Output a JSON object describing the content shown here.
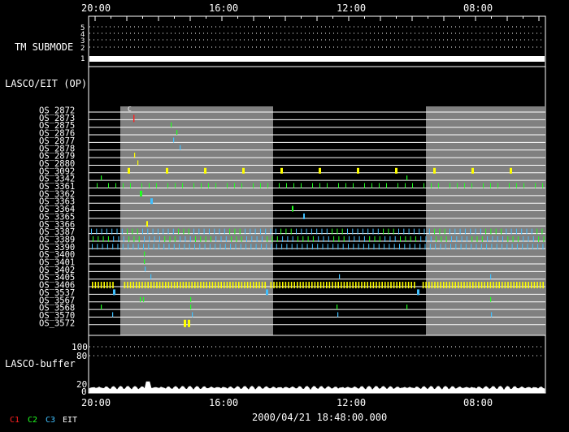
{
  "time_axis": {
    "labels": [
      "20:00",
      "16:00",
      "12:00",
      "08:00"
    ]
  },
  "tm_submode": {
    "title": "TM SUBMODE",
    "levels": [
      "5",
      "4",
      "3",
      "2",
      "1"
    ],
    "active_level": "1"
  },
  "lasco_eit": {
    "title": "LASCO/EIT (OP)"
  },
  "os_rows": [
    "OS_2872",
    "OS_2873",
    "OS_2875",
    "OS_2876",
    "OS_2877",
    "OS_2878",
    "OS_2879",
    "OS_2880",
    "OS_3092",
    "OS_3342",
    "OS_3361",
    "OS_3362",
    "OS_3363",
    "OS_3364",
    "OS_3365",
    "OS_3366",
    "OS_3387",
    "OS_3389",
    "OS_3390",
    "OS_3400",
    "OS_3401",
    "OS_3402",
    "OS_3405",
    "OS_3406",
    "OS_3537",
    "OS_3567",
    "OS_3568",
    "OS_3570",
    "OS_3572"
  ],
  "marker_label": "C",
  "lasco_buffer": {
    "title": "LASCO-buffer",
    "ticks": [
      "100",
      "80",
      "20",
      "0"
    ]
  },
  "footer": {
    "datetime": "2000/04/21 18:48:00.000",
    "legend": [
      {
        "label": "C1",
        "color": "#ff2020"
      },
      {
        "label": "C2",
        "color": "#20ff20"
      },
      {
        "label": "C3",
        "color": "#40c0ff"
      },
      {
        "label": "EIT",
        "color": "#ffffff"
      }
    ]
  },
  "colors": {
    "background": "#000000",
    "gray_band": "#808080",
    "c1": "#ff2020",
    "c2": "#20ff20",
    "c3": "#40c0ff",
    "eit": "#ffffff",
    "yellow": "#ffff00"
  }
}
